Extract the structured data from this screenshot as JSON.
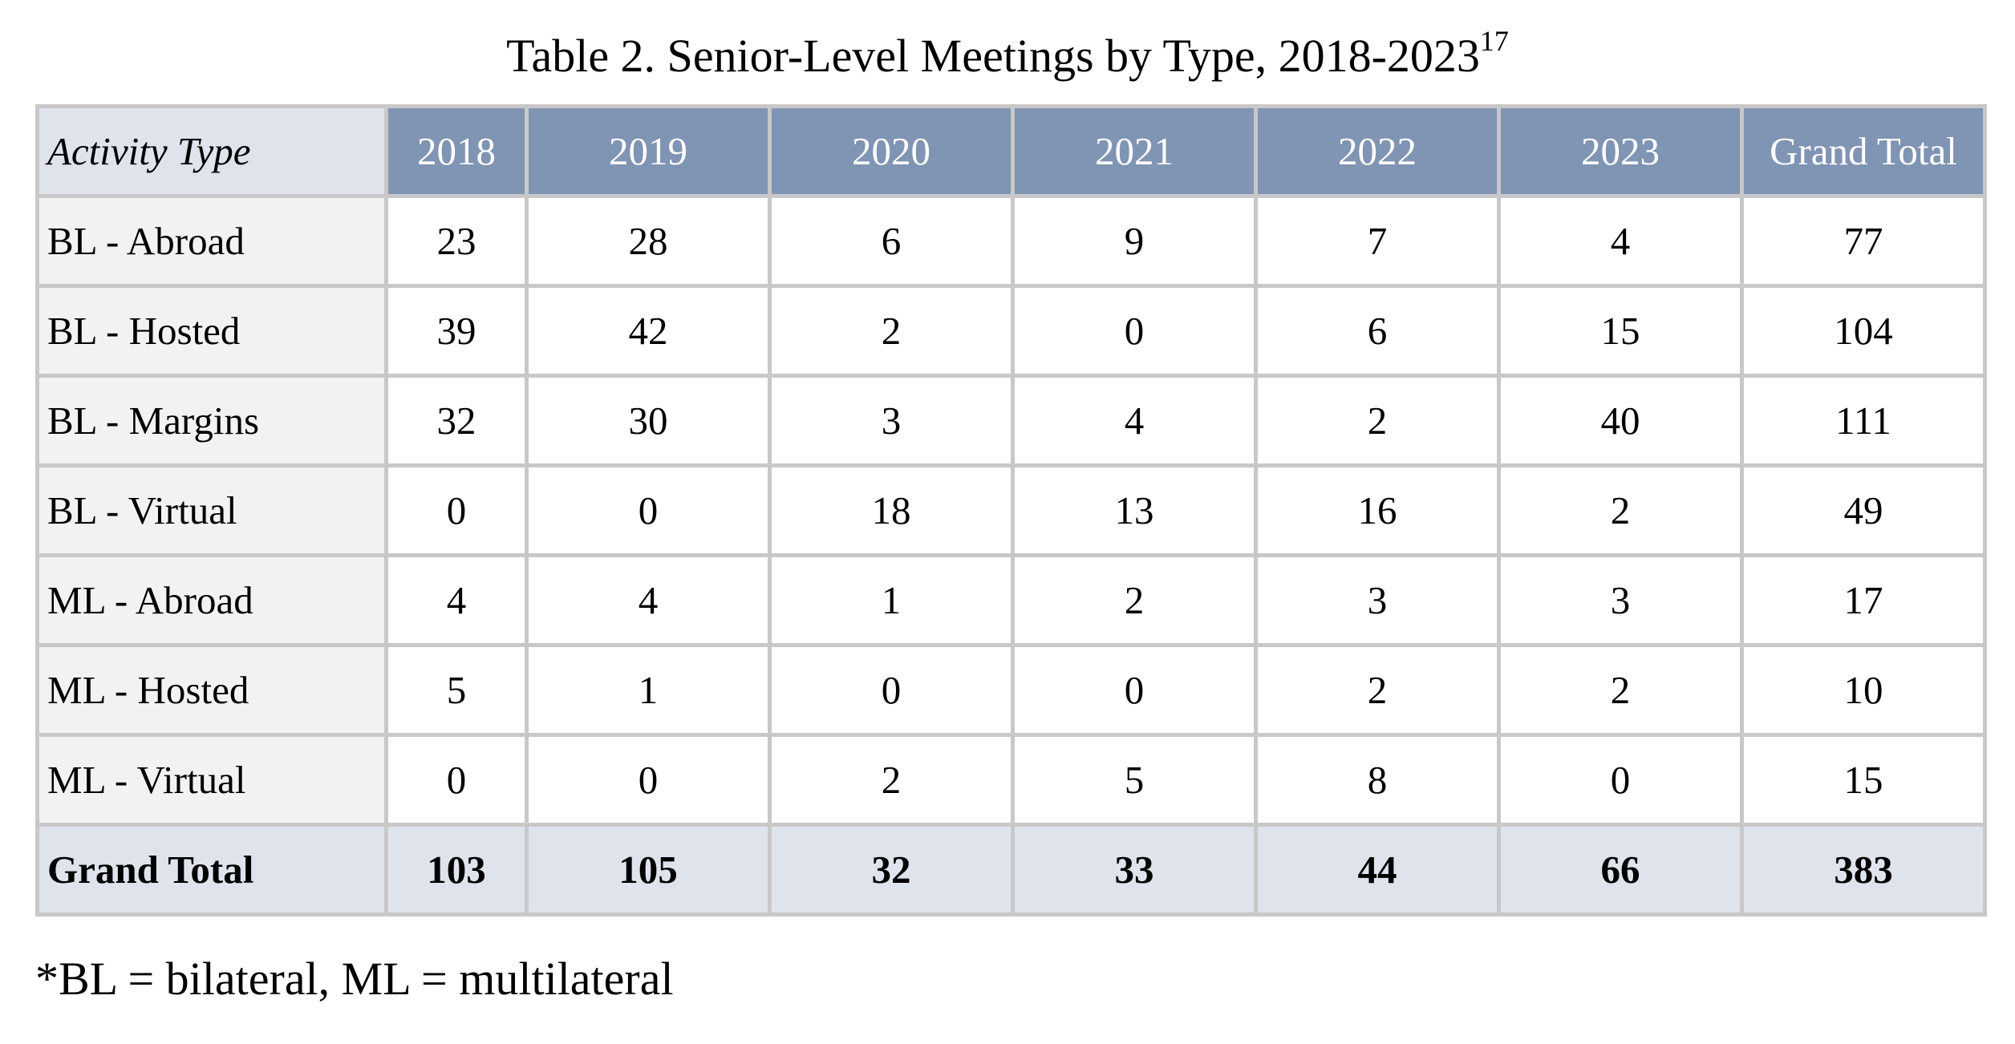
{
  "title": {
    "text": "Table 2. Senior-Level Meetings by Type, 2018-2023",
    "footnote_ref": "17"
  },
  "table": {
    "label_header": "Activity Type",
    "columns": [
      "2018",
      "2019",
      "2020",
      "2021",
      "2022",
      "2023",
      "Grand Total"
    ],
    "rows": [
      {
        "label": "BL - Abroad",
        "values": [
          "23",
          "28",
          "6",
          "9",
          "7",
          "4",
          "77"
        ]
      },
      {
        "label": "BL - Hosted",
        "values": [
          "39",
          "42",
          "2",
          "0",
          "6",
          "15",
          "104"
        ]
      },
      {
        "label": "BL - Margins",
        "values": [
          "32",
          "30",
          "3",
          "4",
          "2",
          "40",
          "111"
        ]
      },
      {
        "label": "BL - Virtual",
        "values": [
          "0",
          "0",
          "18",
          "13",
          "16",
          "2",
          "49"
        ]
      },
      {
        "label": "ML - Abroad",
        "values": [
          "4",
          "4",
          "1",
          "2",
          "3",
          "3",
          "17"
        ]
      },
      {
        "label": "ML - Hosted",
        "values": [
          "5",
          "1",
          "0",
          "0",
          "2",
          "2",
          "10"
        ]
      },
      {
        "label": "ML - Virtual",
        "values": [
          "0",
          "0",
          "2",
          "5",
          "8",
          "0",
          "15"
        ]
      }
    ],
    "total": {
      "label": "Grand Total",
      "values": [
        "103",
        "105",
        "32",
        "33",
        "44",
        "66",
        "383"
      ]
    }
  },
  "footnote": "*BL = bilateral, ML = multilateral",
  "colors": {
    "header_blue": "#8094b3",
    "label_header_bg": "#dfe3ec",
    "row_label_bg": "#f2f2f2",
    "total_row_bg": "#dfe3ec",
    "grid": "#c8c8c8"
  }
}
